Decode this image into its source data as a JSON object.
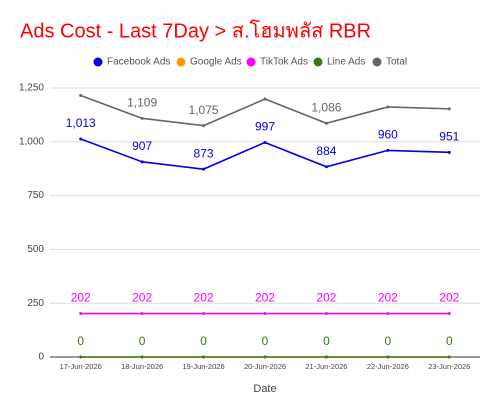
{
  "chart_data": {
    "type": "line",
    "title": "Ads Cost - Last 7Day > ส.โฮมพลัส RBR",
    "x_label": "Date",
    "categories": [
      "17-Jun-2026",
      "18-Jun-2026",
      "19-Jun-2026",
      "20-Jun-2026",
      "21-Jun-2026",
      "22-Jun-2026",
      "23-Jun-2026"
    ],
    "series": [
      {
        "name": "Facebook Ads",
        "color": "#0000e6",
        "values": [
          1013,
          907,
          873,
          997,
          884,
          960,
          951
        ],
        "value_labels": [
          "1,013",
          "907",
          "873",
          "997",
          "884",
          "960",
          "951"
        ]
      },
      {
        "name": "Google Ads",
        "color": "#ff9900",
        "values": [
          0,
          0,
          0,
          0,
          0,
          0,
          0
        ]
      },
      {
        "name": "TikTok Ads",
        "color": "#ff00ff",
        "values": [
          202,
          202,
          202,
          202,
          202,
          202,
          202
        ],
        "value_labels": [
          "202",
          "202",
          "202",
          "202",
          "202",
          "202",
          "202"
        ]
      },
      {
        "name": "Line Ads",
        "color": "#38761d",
        "values": [
          0,
          0,
          0,
          0,
          0,
          0,
          0
        ],
        "value_labels": [
          "0",
          "0",
          "0",
          "0",
          "0",
          "0",
          "0"
        ]
      },
      {
        "name": "Total",
        "color": "#666666",
        "values": [
          1215,
          1109,
          1075,
          1199,
          1086,
          1162,
          1153
        ],
        "value_labels": [
          null,
          "1,109",
          "1,075",
          null,
          "1,086",
          null,
          null
        ]
      }
    ],
    "ylim": [
      0,
      1250
    ],
    "yticks": [
      0,
      250,
      500,
      750,
      {
        "value": 1000,
        "label": "1,000"
      },
      {
        "value": 1250,
        "label": "1,250"
      }
    ],
    "grid": true
  }
}
